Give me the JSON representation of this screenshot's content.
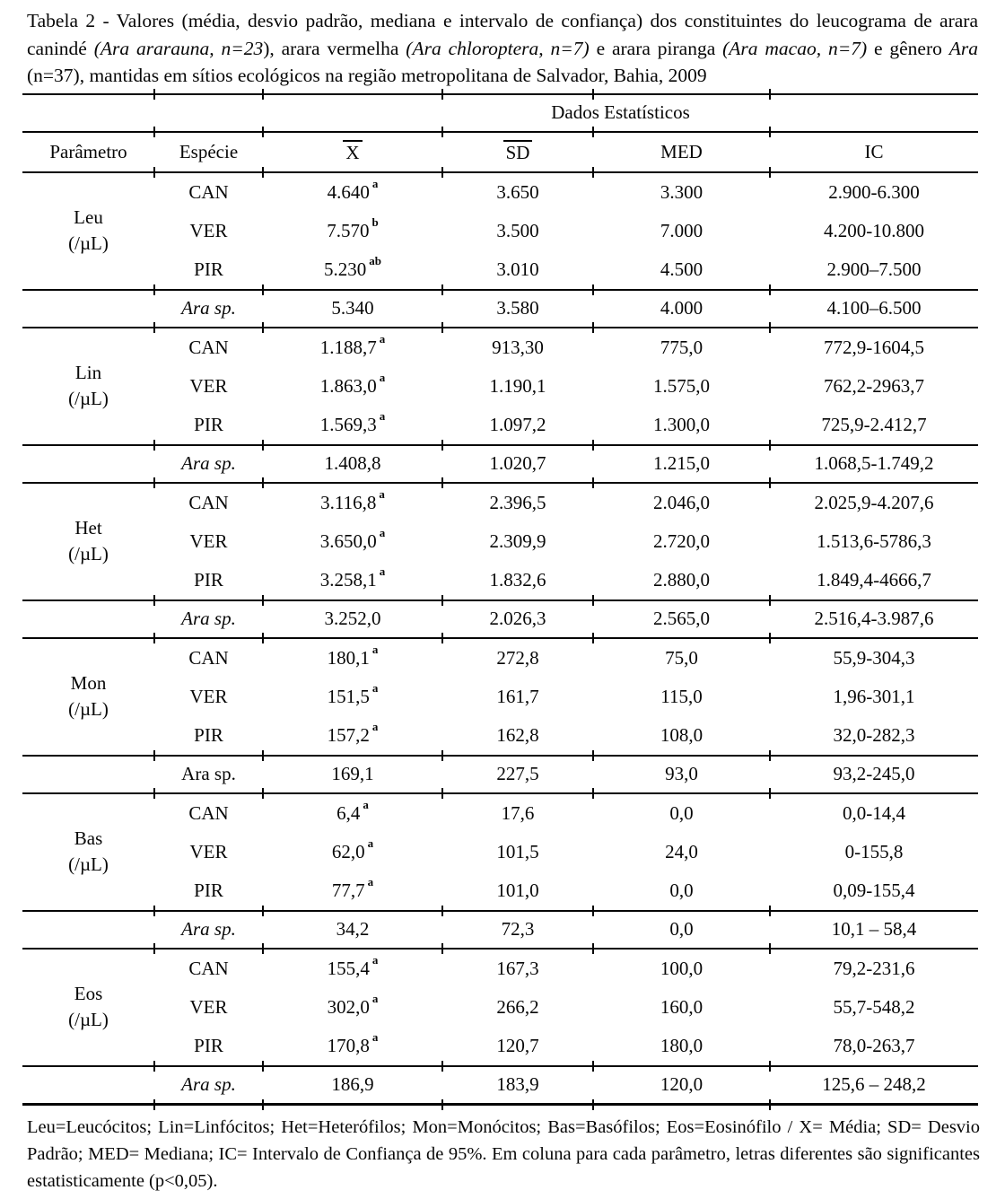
{
  "caption": {
    "segments": [
      {
        "text": "Tabela 2 - Valores (média, desvio padrão, mediana e intervalo de confiança) dos constituintes do leucograma de arara canindé ",
        "italic": false
      },
      {
        "text": "(Ara ararauna, n=23",
        "italic": true
      },
      {
        "text": "), arara vermelha ",
        "italic": false
      },
      {
        "text": "(Ara chloroptera, n=7)",
        "italic": true
      },
      {
        "text": " e arara piranga ",
        "italic": false
      },
      {
        "text": "(Ara macao, n=7)",
        "italic": true
      },
      {
        "text": " e gênero ",
        "italic": false
      },
      {
        "text": "Ara",
        "italic": true
      },
      {
        "text": " (n=37), mantidas em sítios ecológicos na região metropolitana de Salvador, Bahia, 2009",
        "italic": false
      }
    ]
  },
  "table": {
    "group_header": "Dados Estatísticos",
    "header": {
      "parametro": "Parâmetro",
      "especie": "Espécie",
      "mean": "X",
      "sd": "SD",
      "med": "MED",
      "ic": "IC"
    },
    "blocks": [
      {
        "param": "Leu",
        "unit": "(/µL)",
        "rows": [
          {
            "species": "CAN",
            "mean": "4.640",
            "sup": "a",
            "sd": "3.650",
            "med": "3.300",
            "ic": "2.900-6.300"
          },
          {
            "species": "VER",
            "mean": "7.570",
            "sup": "b",
            "sd": "3.500",
            "med": "7.000",
            "ic": "4.200-10.800"
          },
          {
            "species": "PIR",
            "mean": "5.230",
            "sup": "ab",
            "sd": "3.010",
            "med": "4.500",
            "ic": "2.900–7.500"
          }
        ],
        "summary": {
          "species": "Ara sp.",
          "italic": true,
          "mean": "5.340",
          "sd": "3.580",
          "med": "4.000",
          "ic": "4.100–6.500"
        }
      },
      {
        "param": "Lin",
        "unit": "(/µL)",
        "rows": [
          {
            "species": "CAN",
            "mean": "1.188,7",
            "sup": "a",
            "sd": "913,30",
            "med": "775,0",
            "ic": "772,9-1604,5"
          },
          {
            "species": "VER",
            "mean": "1.863,0",
            "sup": "a",
            "sd": "1.190,1",
            "med": "1.575,0",
            "ic": "762,2-2963,7"
          },
          {
            "species": "PIR",
            "mean": "1.569,3",
            "sup": "a",
            "sd": "1.097,2",
            "med": "1.300,0",
            "ic": "725,9-2.412,7"
          }
        ],
        "summary": {
          "species": "Ara sp.",
          "italic": true,
          "mean": "1.408,8",
          "sd": "1.020,7",
          "med": "1.215,0",
          "ic": "1.068,5-1.749,2"
        }
      },
      {
        "param": "Het",
        "unit": "(/µL)",
        "rows": [
          {
            "species": "CAN",
            "mean": "3.116,8",
            "sup": "a",
            "sd": "2.396,5",
            "med": "2.046,0",
            "ic": "2.025,9-4.207,6"
          },
          {
            "species": "VER",
            "mean": "3.650,0",
            "sup": "a",
            "sd": "2.309,9",
            "med": "2.720,0",
            "ic": "1.513,6-5786,3"
          },
          {
            "species": "PIR",
            "mean": "3.258,1",
            "sup": "a",
            "sd": "1.832,6",
            "med": "2.880,0",
            "ic": "1.849,4-4666,7"
          }
        ],
        "summary": {
          "species": "Ara sp.",
          "italic": true,
          "mean": "3.252,0",
          "sd": "2.026,3",
          "med": "2.565,0",
          "ic": "2.516,4-3.987,6"
        }
      },
      {
        "param": "Mon",
        "unit": "(/µL)",
        "rows": [
          {
            "species": "CAN",
            "mean": "180,1",
            "sup": "a",
            "sd": "272,8",
            "med": "75,0",
            "ic": "55,9-304,3"
          },
          {
            "species": "VER",
            "mean": "151,5",
            "sup": "a",
            "sd": "161,7",
            "med": "115,0",
            "ic": "1,96-301,1"
          },
          {
            "species": "PIR",
            "mean": "157,2",
            "sup": "a",
            "sd": "162,8",
            "med": "108,0",
            "ic": "32,0-282,3"
          }
        ],
        "summary": {
          "species": "Ara sp.",
          "italic": false,
          "mean": "169,1",
          "sd": "227,5",
          "med": "93,0",
          "ic": "93,2-245,0"
        }
      },
      {
        "param": "Bas",
        "unit": "(/µL)",
        "rows": [
          {
            "species": "CAN",
            "mean": "6,4",
            "sup": "a",
            "sd": "17,6",
            "med": "0,0",
            "ic": "0,0-14,4"
          },
          {
            "species": "VER",
            "mean": "62,0",
            "sup": "a",
            "sd": "101,5",
            "med": "24,0",
            "ic": "0-155,8"
          },
          {
            "species": "PIR",
            "mean": "77,7",
            "sup": "a",
            "sd": "101,0",
            "med": "0,0",
            "ic": "0,09-155,4"
          }
        ],
        "summary": {
          "species": "Ara sp.",
          "italic": true,
          "mean": "34,2",
          "sd": "72,3",
          "med": "0,0",
          "ic": "10,1 – 58,4"
        }
      },
      {
        "param": "Eos",
        "unit": "(/µL)",
        "rows": [
          {
            "species": "CAN",
            "mean": "155,4",
            "sup": "a",
            "sd": "167,3",
            "med": "100,0",
            "ic": "79,2-231,6"
          },
          {
            "species": "VER",
            "mean": "302,0",
            "sup": "a",
            "sd": "266,2",
            "med": "160,0",
            "ic": "55,7-548,2"
          },
          {
            "species": "PIR",
            "mean": "170,8",
            "sup": "a",
            "sd": "120,7",
            "med": "180,0",
            "ic": "78,0-263,7"
          }
        ],
        "summary": {
          "species": "Ara sp.",
          "italic": true,
          "mean": "186,9",
          "sd": "183,9",
          "med": "120,0",
          "ic": "125,6 – 248,2"
        }
      }
    ]
  },
  "footnote": "Leu=Leucócitos; Lin=Linfócitos; Het=Heterófilos; Mon=Monócitos; Bas=Basófilos; Eos=Eosinófilo / X= Média; SD= Desvio Padrão; MED= Mediana; IC= Intervalo de Confiança de 95%. Em coluna para cada parâmetro, letras diferentes são significantes estatisticamente (p<0,05)."
}
